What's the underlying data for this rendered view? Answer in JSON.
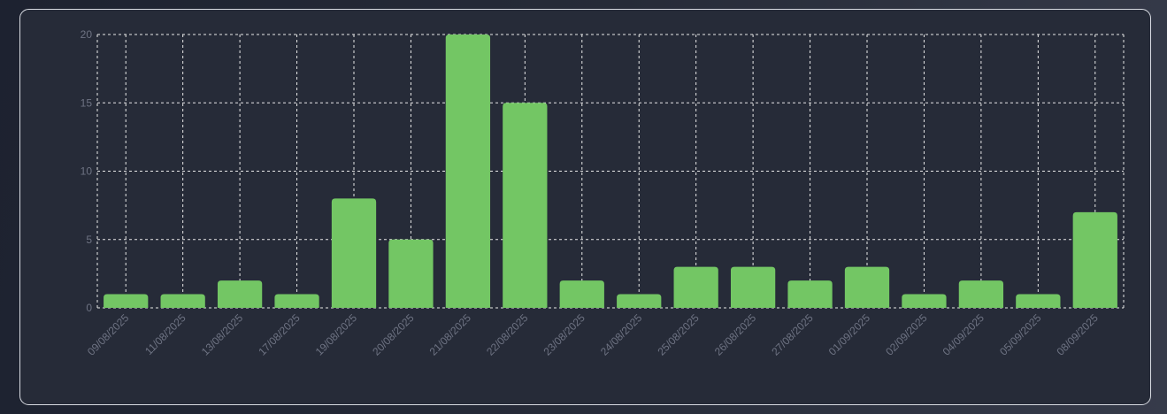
{
  "chart_data": {
    "type": "bar",
    "categories": [
      "09/08/2025",
      "11/08/2025",
      "13/08/2025",
      "17/08/2025",
      "19/08/2025",
      "20/08/2025",
      "21/08/2025",
      "22/08/2025",
      "23/08/2025",
      "24/08/2025",
      "25/08/2025",
      "26/08/2025",
      "27/08/2025",
      "01/09/2025",
      "02/09/2025",
      "04/09/2025",
      "05/09/2025",
      "08/09/2025"
    ],
    "values": [
      1,
      1,
      2,
      1,
      8,
      5,
      20,
      15,
      2,
      1,
      3,
      3,
      2,
      3,
      1,
      2,
      1,
      7
    ],
    "color": "#73c664",
    "ylim": [
      0,
      20
    ],
    "yticks": [
      0,
      5,
      10,
      15,
      20
    ],
    "grid": true
  }
}
